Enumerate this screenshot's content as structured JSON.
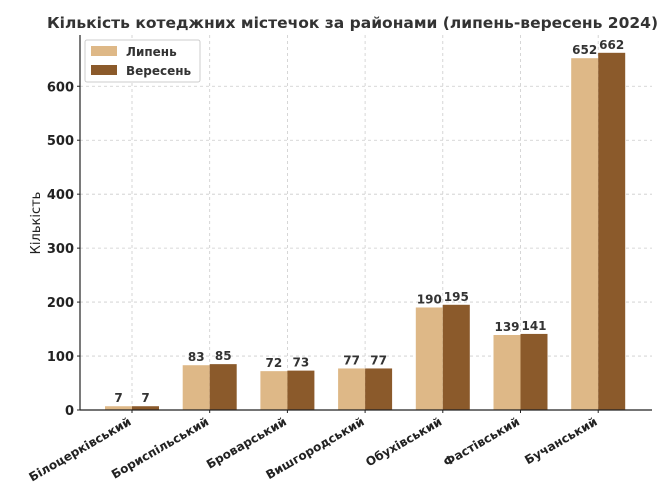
{
  "chart_data": {
    "type": "bar",
    "title": "Кількість котеджних містечок за районами (липень-вересень 2024)",
    "xlabel": "",
    "ylabel": "Кількість",
    "categories": [
      "Білоцерківський",
      "Бориспільський",
      "Броварський",
      "Вишгородський",
      "Обухівський",
      "Фастівський",
      "Бучанський"
    ],
    "series": [
      {
        "name": "Липень",
        "color": "#deb887",
        "values": [
          7,
          83,
          72,
          77,
          190,
          139,
          652
        ]
      },
      {
        "name": "Вересень",
        "color": "#8b5a2b",
        "values": [
          7,
          85,
          73,
          77,
          195,
          141,
          662
        ]
      }
    ],
    "ylim": [
      0,
      695
    ],
    "yticks": [
      0,
      100,
      200,
      300,
      400,
      500,
      600
    ],
    "grid": true,
    "legend": "top-left"
  }
}
